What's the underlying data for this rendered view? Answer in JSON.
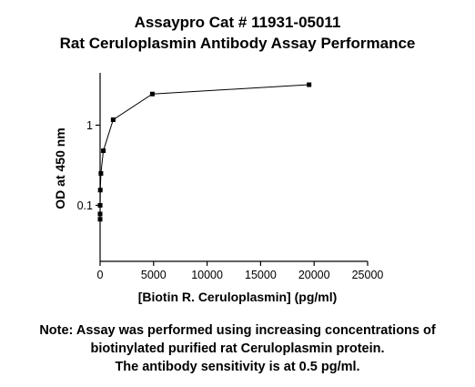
{
  "chart_data": {
    "type": "line",
    "title": "Assaypro Cat # 11931-05011",
    "subtitle": "Rat Ceruloplasmin Antibody Assay Performance",
    "xlabel": "[Biotin R. Ceruloplasmin] (pg/ml)",
    "ylabel": "OD at 450 nm",
    "xlim": [
      0,
      25000
    ],
    "ylim": [
      0.02,
      4.5
    ],
    "yscale": "log",
    "grid": false,
    "x_ticks": [
      0,
      5000,
      10000,
      15000,
      20000,
      25000
    ],
    "x_tick_labels": [
      "0",
      "5000",
      "10000",
      "15000",
      "20000",
      "25000"
    ],
    "y_ticks": [
      0.1,
      1
    ],
    "y_tick_labels": [
      "0.1",
      "1"
    ],
    "series": [
      {
        "x": [
          19531,
          4883,
          1221,
          305,
          76,
          19,
          5,
          1.2,
          0.3
        ],
        "y": [
          3.2,
          2.45,
          1.17,
          0.48,
          0.25,
          0.155,
          0.1,
          0.078,
          0.067
        ],
        "color": "#000000"
      }
    ]
  },
  "note": {
    "lines": [
      "Note: Assay was performed using increasing concentrations of",
      "biotinylated purified rat Ceruloplasmin protein.",
      "The antibody sensitivity is at 0.5 pg/ml."
    ]
  }
}
